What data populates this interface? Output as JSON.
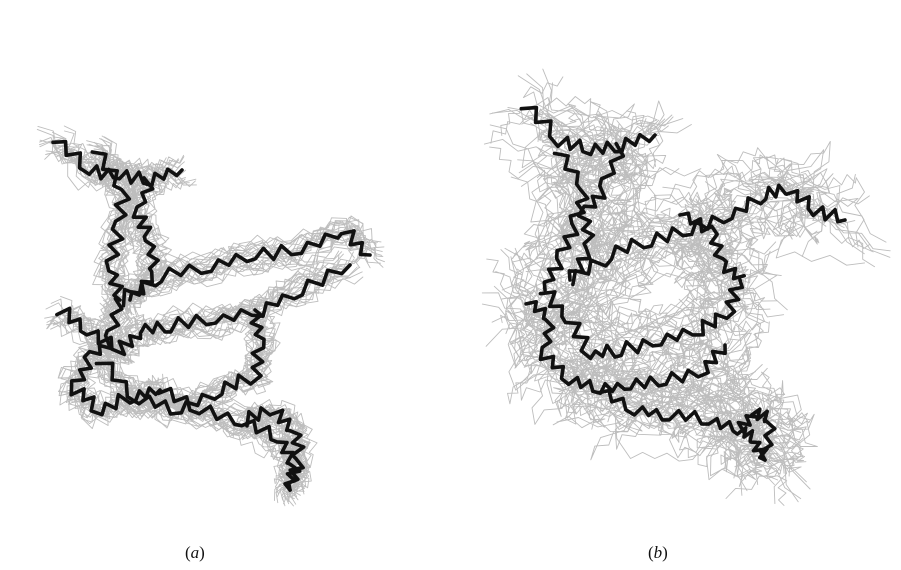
{
  "figure": {
    "panels": [
      {
        "id": "a",
        "label_open": "(",
        "label_letter": "a",
        "label_close": ")"
      },
      {
        "id": "b",
        "label_open": "(",
        "label_letter": "b",
        "label_close": ")"
      }
    ],
    "colors": {
      "ensemble": "#bdbdbd",
      "reference": "#111111"
    }
  }
}
